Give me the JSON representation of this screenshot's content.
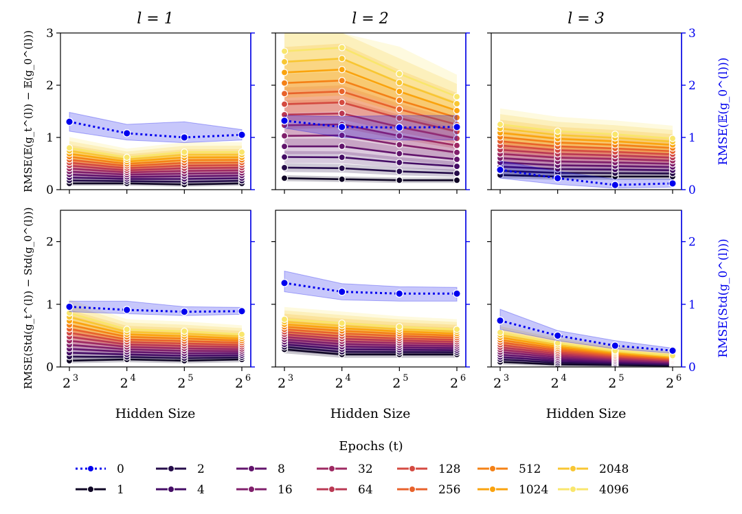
{
  "figure": {
    "xlabel": "Hidden Size",
    "left_ylabels": [
      "RMSE(𝔼(g_t^(l)) − 𝔼(g_0^(l)))",
      "RMSE(Std(g_t^(l)) − Std(g_0^(l)))"
    ],
    "right_ylabels": [
      "RMSE(𝔼(g_0^(l)))",
      "RMSE(Std(g_0^(l)))"
    ],
    "col_titles": [
      "l = 1",
      "l = 2",
      "l = 3"
    ],
    "legend_title": "Epochs (t)"
  },
  "colors": {
    "epoch0": "#0000ee",
    "palette": [
      "#000004",
      "#1c0c42",
      "#4a0c6b",
      "#781c6d",
      "#a52c60",
      "#cf4446",
      "#ed6925",
      "#fb9b06",
      "#f7d13d",
      "#fcffa4"
    ]
  },
  "chart_data": {
    "type": "line",
    "x_ticks": [
      "2",
      "2",
      "2",
      "2"
    ],
    "x_tick_exponents": [
      "3",
      "4",
      "5",
      "6"
    ],
    "x": [
      8,
      16,
      32,
      64
    ],
    "epochs": [
      "1",
      "2",
      "4",
      "8",
      "16",
      "32",
      "64",
      "128",
      "256",
      "512",
      "1024",
      "2048",
      "4096"
    ],
    "legend_order": [
      "0",
      "1",
      "2",
      "4",
      "8",
      "16",
      "32",
      "64",
      "128",
      "256",
      "512",
      "1024",
      "2048",
      "4096"
    ],
    "rows": [
      {
        "ylim": [
          0,
          3
        ],
        "yticks": [
          "0",
          "1",
          "2",
          "3"
        ],
        "right_ylim": [
          0,
          3
        ],
        "right_yticks": [
          "0",
          "1",
          "2",
          "3"
        ],
        "panels": [
          {
            "title": "l = 1",
            "epoch0": [
              1.3,
              1.08,
              1.0,
              1.05
            ],
            "epoch0_band": [
              [
                1.12,
                1.48
              ],
              [
                0.95,
                1.25
              ],
              [
                0.9,
                1.3
              ],
              [
                0.95,
                1.15
              ]
            ],
            "first": [
              0.12,
              0.12,
              0.1,
              0.12
            ],
            "last": [
              0.8,
              0.62,
              0.72,
              0.72
            ]
          },
          {
            "title": "l = 2",
            "epoch0": [
              1.32,
              1.2,
              1.19,
              1.2
            ],
            "epoch0_band": [
              [
                1.18,
                1.42
              ],
              [
                1.0,
                1.4
              ],
              [
                0.95,
                1.42
              ],
              [
                0.95,
                1.42
              ]
            ],
            "first": [
              0.22,
              0.2,
              0.18,
              0.18
            ],
            "last": [
              2.65,
              2.72,
              2.22,
              1.78
            ]
          },
          {
            "title": "l = 3",
            "epoch0": [
              0.38,
              0.22,
              0.09,
              0.12
            ],
            "epoch0_band": [
              [
                0.22,
                0.55
              ],
              [
                0.1,
                0.35
              ],
              [
                0.03,
                0.2
              ],
              [
                0.05,
                0.2
              ]
            ],
            "first": [
              0.28,
              0.25,
              0.25,
              0.25
            ],
            "last": [
              1.25,
              1.12,
              1.06,
              0.98
            ]
          }
        ]
      },
      {
        "ylim": [
          0,
          2.5
        ],
        "yticks": [
          "0",
          "1",
          "2"
        ],
        "right_ylim": [
          0,
          2.5
        ],
        "right_yticks": [
          "0",
          "1",
          "2"
        ],
        "panels": [
          {
            "title": "l = 1",
            "epoch0": [
              0.96,
              0.91,
              0.88,
              0.89
            ],
            "epoch0_band": [
              [
                0.88,
                1.05
              ],
              [
                0.85,
                1.05
              ],
              [
                0.82,
                0.96
              ],
              [
                0.84,
                0.95
              ]
            ],
            "first": [
              0.1,
              0.12,
              0.1,
              0.12
            ],
            "last": [
              0.86,
              0.6,
              0.57,
              0.52
            ]
          },
          {
            "title": "l = 2",
            "epoch0": [
              1.34,
              1.2,
              1.17,
              1.17
            ],
            "epoch0_band": [
              [
                1.2,
                1.53
              ],
              [
                1.07,
                1.33
              ],
              [
                1.05,
                1.28
              ],
              [
                1.05,
                1.27
              ]
            ],
            "first": [
              0.28,
              0.2,
              0.2,
              0.2
            ],
            "last": [
              0.76,
              0.7,
              0.64,
              0.6
            ]
          },
          {
            "title": "l = 3",
            "epoch0": [
              0.74,
              0.5,
              0.34,
              0.26
            ],
            "epoch0_band": [
              [
                0.6,
                0.92
              ],
              [
                0.42,
                0.58
              ],
              [
                0.29,
                0.42
              ],
              [
                0.22,
                0.3
              ]
            ],
            "first": [
              0.08,
              0.04,
              0.03,
              0.02
            ],
            "last": [
              0.55,
              0.38,
              0.26,
              0.18
            ]
          }
        ]
      }
    ]
  }
}
